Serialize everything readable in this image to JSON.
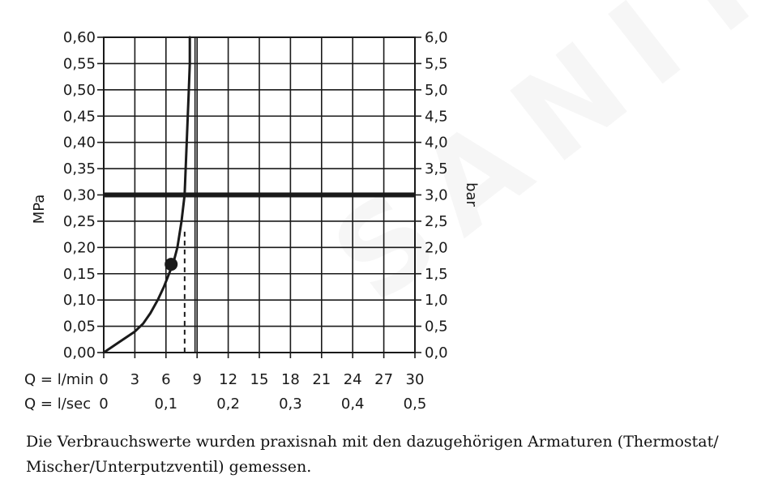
{
  "watermark": "SANITINO",
  "caption": {
    "line1": "Die Verbrauchswerte wurden praxisnah mit den dazugehörigen Armaturen (Thermostat/",
    "line2": "Mischer/Unterputzventil) gemessen."
  },
  "chart_data": {
    "type": "line",
    "grid": true,
    "left_axis": {
      "label": "MPa",
      "ylim": [
        0,
        0.6
      ],
      "ticks": [
        0,
        0.05,
        0.1,
        0.15,
        0.2,
        0.25,
        0.3,
        0.35,
        0.4,
        0.45,
        0.5,
        0.55,
        0.6
      ],
      "tick_labels": [
        "0,00",
        "0,05",
        "0,10",
        "0,15",
        "0,20",
        "0,25",
        "0,30",
        "0,35",
        "0,40",
        "0,45",
        "0,50",
        "0,55",
        "0,60"
      ]
    },
    "right_axis": {
      "label": "bar",
      "ylim": [
        0,
        6
      ],
      "tick_labels": [
        "0,0",
        "0,5",
        "1,0",
        "1,5",
        "2,0",
        "2,5",
        "3,0",
        "3,5",
        "4,0",
        "4,5",
        "5,0",
        "5,5",
        "6,0"
      ]
    },
    "x_axis_rows": [
      {
        "label": "Q = l/min",
        "xlim": [
          0,
          30
        ],
        "ticks": [
          0,
          3,
          6,
          9,
          12,
          15,
          18,
          21,
          24,
          27,
          30
        ],
        "tick_labels": [
          "0",
          "3",
          "6",
          "9",
          "12",
          "15",
          "18",
          "21",
          "24",
          "27",
          "30"
        ]
      },
      {
        "label": "Q = l/sec",
        "ticks": [
          0,
          6,
          12,
          18,
          24,
          30
        ],
        "tick_labels": [
          "0",
          "0,1",
          "0,2",
          "0,3",
          "0,4",
          "0,5"
        ]
      }
    ],
    "series": [
      {
        "x": [
          0,
          1.5,
          3,
          3.8,
          4.5,
          5.2,
          5.8,
          6.3,
          6.7,
          7.1,
          7.5,
          7.8,
          7.9,
          8.0,
          8.1,
          8.2,
          8.3,
          8.3
        ],
        "y": [
          0,
          0.02,
          0.04,
          0.055,
          0.075,
          0.1,
          0.125,
          0.15,
          0.17,
          0.2,
          0.25,
          0.3,
          0.35,
          0.4,
          0.45,
          0.5,
          0.55,
          0.6
        ]
      }
    ],
    "reference_line": {
      "y": 0.3
    },
    "marker_point": {
      "x": 6.5,
      "y": 0.168
    },
    "dashed_guide": {
      "x": 7.8,
      "y_top": 0.23
    },
    "vertical_line": {
      "x": 8.8
    }
  }
}
